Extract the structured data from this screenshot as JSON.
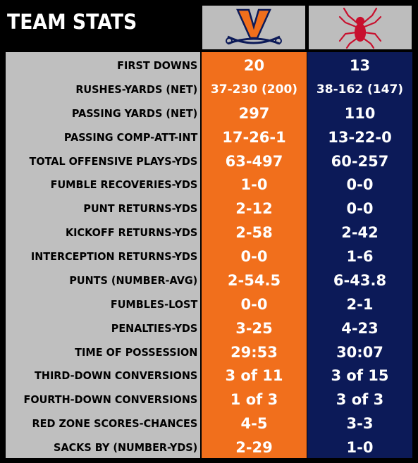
{
  "title": "TEAM STATS",
  "teams": [
    {
      "logo": "virginia-cavaliers-logo",
      "color": "#f16f1c"
    },
    {
      "logo": "richmond-spiders-logo",
      "color": "#0c1a58"
    }
  ],
  "rows": [
    {
      "label": "FIRST DOWNS",
      "home": "20",
      "away": "13"
    },
    {
      "label": "RUSHES-YARDS (NET)",
      "home": "37-230 (200)",
      "away": "38-162 (147)"
    },
    {
      "label": "PASSING YARDS (NET)",
      "home": "297",
      "away": "110"
    },
    {
      "label": "PASSING COMP-ATT-INT",
      "home": "17-26-1",
      "away": "13-22-0"
    },
    {
      "label": "TOTAL OFFENSIVE PLAYS-YDS",
      "home": "63-497",
      "away": "60-257"
    },
    {
      "label": "FUMBLE RECOVERIES-YDS",
      "home": "1-0",
      "away": "0-0"
    },
    {
      "label": "PUNT RETURNS-YDS",
      "home": "2-12",
      "away": "0-0"
    },
    {
      "label": "KICKOFF RETURNS-YDS",
      "home": "2-58",
      "away": "2-42"
    },
    {
      "label": "INTERCEPTION RETURNS-YDS",
      "home": "0-0",
      "away": "1-6"
    },
    {
      "label": "PUNTS (NUMBER-AVG)",
      "home": "2-54.5",
      "away": "6-43.8"
    },
    {
      "label": "FUMBLES-LOST",
      "home": "0-0",
      "away": "2-1"
    },
    {
      "label": "PENALTIES-YDS",
      "home": "3-25",
      "away": "4-23"
    },
    {
      "label": "TIME OF POSSESSION",
      "home": "29:53",
      "away": "30:07"
    },
    {
      "label": "THIRD-DOWN CONVERSIONS",
      "home": "3 of 11",
      "away": "3 of 15"
    },
    {
      "label": "FOURTH-DOWN CONVERSIONS",
      "home": "1 of 3",
      "away": "3 of 3"
    },
    {
      "label": "RED ZONE SCORES-CHANCES",
      "home": "4-5",
      "away": "3-3"
    },
    {
      "label": "SACKS BY (NUMBER-YDS)",
      "home": "2-29",
      "away": "1-0"
    }
  ]
}
